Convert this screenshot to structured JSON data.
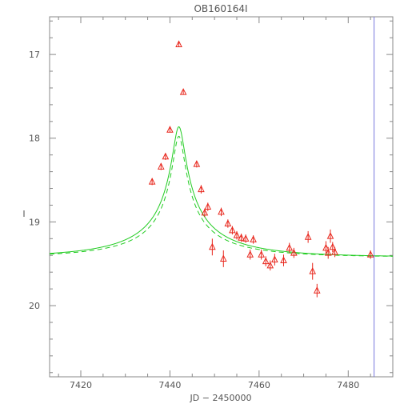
{
  "chart_data": {
    "type": "scatter",
    "title": "OB160164I",
    "xlabel": "JD − 2450000",
    "ylabel": "I",
    "xlim": [
      7413,
      7490
    ],
    "ylim": [
      20.85,
      16.55
    ],
    "y_inverted": true,
    "grid": false,
    "x_ticks": [
      7420,
      7440,
      7460,
      7480
    ],
    "y_ticks": [
      17,
      18,
      19,
      20
    ],
    "colors": {
      "data": "#e8281e",
      "model": "#22cc22",
      "marker_line": "#7777dd",
      "axes": "#888888",
      "text": "#555555"
    },
    "series": [
      {
        "kind": "data",
        "marker": "triangle-open",
        "points": [
          {
            "x": 7436.0,
            "y": 18.52,
            "err": 0.04
          },
          {
            "x": 7438.0,
            "y": 18.34,
            "err": 0.04
          },
          {
            "x": 7439.0,
            "y": 18.22,
            "err": 0.04
          },
          {
            "x": 7440.0,
            "y": 17.9,
            "err": 0.03
          },
          {
            "x": 7442.0,
            "y": 16.88,
            "err": 0.03
          },
          {
            "x": 7443.0,
            "y": 17.45,
            "err": 0.03
          },
          {
            "x": 7446.0,
            "y": 18.31,
            "err": 0.04
          },
          {
            "x": 7447.0,
            "y": 18.61,
            "err": 0.05
          },
          {
            "x": 7447.8,
            "y": 18.89,
            "err": 0.05
          },
          {
            "x": 7448.5,
            "y": 18.82,
            "err": 0.05
          },
          {
            "x": 7449.5,
            "y": 19.3,
            "err": 0.1
          },
          {
            "x": 7451.5,
            "y": 18.88,
            "err": 0.05
          },
          {
            "x": 7452.0,
            "y": 19.44,
            "err": 0.1
          },
          {
            "x": 7453.0,
            "y": 19.02,
            "err": 0.05
          },
          {
            "x": 7454.0,
            "y": 19.1,
            "err": 0.05
          },
          {
            "x": 7455.0,
            "y": 19.16,
            "err": 0.05
          },
          {
            "x": 7456.0,
            "y": 19.19,
            "err": 0.05
          },
          {
            "x": 7457.0,
            "y": 19.2,
            "err": 0.05
          },
          {
            "x": 7458.0,
            "y": 19.39,
            "err": 0.06
          },
          {
            "x": 7458.7,
            "y": 19.21,
            "err": 0.05
          },
          {
            "x": 7460.5,
            "y": 19.39,
            "err": 0.06
          },
          {
            "x": 7461.5,
            "y": 19.47,
            "err": 0.06
          },
          {
            "x": 7462.5,
            "y": 19.52,
            "err": 0.06
          },
          {
            "x": 7463.5,
            "y": 19.45,
            "err": 0.07
          },
          {
            "x": 7465.5,
            "y": 19.46,
            "err": 0.07
          },
          {
            "x": 7466.8,
            "y": 19.31,
            "err": 0.06
          },
          {
            "x": 7467.8,
            "y": 19.37,
            "err": 0.06
          },
          {
            "x": 7471.0,
            "y": 19.18,
            "err": 0.07
          },
          {
            "x": 7472.0,
            "y": 19.59,
            "err": 0.1
          },
          {
            "x": 7473.0,
            "y": 19.82,
            "err": 0.08
          },
          {
            "x": 7475.0,
            "y": 19.31,
            "err": 0.08
          },
          {
            "x": 7475.5,
            "y": 19.37,
            "err": 0.07
          },
          {
            "x": 7476.0,
            "y": 19.17,
            "err": 0.08
          },
          {
            "x": 7476.5,
            "y": 19.3,
            "err": 0.06
          },
          {
            "x": 7477.0,
            "y": 19.36,
            "err": 0.06
          },
          {
            "x": 7485.0,
            "y": 19.39,
            "err": 0.05
          }
        ]
      },
      {
        "kind": "model",
        "style": "solid",
        "params": {
          "t0": 7442.0,
          "u0": 0.05,
          "tE": 25.0,
          "base": 19.42,
          "fs": 0.168
        }
      },
      {
        "kind": "model",
        "style": "dashed",
        "params": {
          "t0": 7442.0,
          "u0": 0.05,
          "tE": 24.0,
          "base": 19.42,
          "fs": 0.146
        }
      }
    ],
    "vertical_marker": {
      "x": 7485.8
    }
  }
}
